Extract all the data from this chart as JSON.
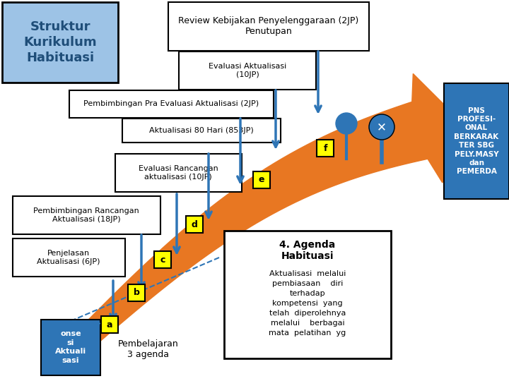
{
  "title": "Struktur\nKurikulum\nHabituasi",
  "title_color": "#1F4E79",
  "title_bg": "#9DC3E6",
  "review_box_text": "Review Kebijakan Penyelenggaraan (2JP)\nPenutupan",
  "evaluasi_aktualisasi_text": "Evaluasi Aktualisasi\n(10JP)",
  "pembimbingan_pra_text": "Pembimbingan Pra Evaluasi Aktualisasi (2JP)",
  "aktualisasi_80_text": "Aktualisasi 80 Hari (853JP)",
  "evaluasi_rancangan_text": "Evaluasi Rancangan\naktualisasi (10JP)",
  "pembimbingan_rancangan_text": "Pembimbingan Rancangan\nAktualisasi (18JP)",
  "penjelasan_text": "Penjelasan\nAktualisasi (6JP)",
  "agenda_title": "4. Agenda\nHabituasi",
  "agenda_text": "Aktualisasi  melalui\npembiasaan    diri\nterhadap\nkompetensi  yang\ntelah  diperolehnya\nmelalui    berbagai\nmata  pelatihan  yg",
  "pns_text": "PNS\nPROFESI-\nONAL\nBERKARAK\nTER SBG\nPELY.MASY\ndan\nPEMERDA",
  "pembelajaran_text": "Pembelajaran\n3 agenda",
  "konse_text": "onse\nsi\nAktuali\nsasi",
  "arrow_color": "#E87722",
  "blue_color": "#2E75B6",
  "yellow_color": "#FFFF00",
  "box_border": "#000000",
  "background": "#FFFFFF"
}
